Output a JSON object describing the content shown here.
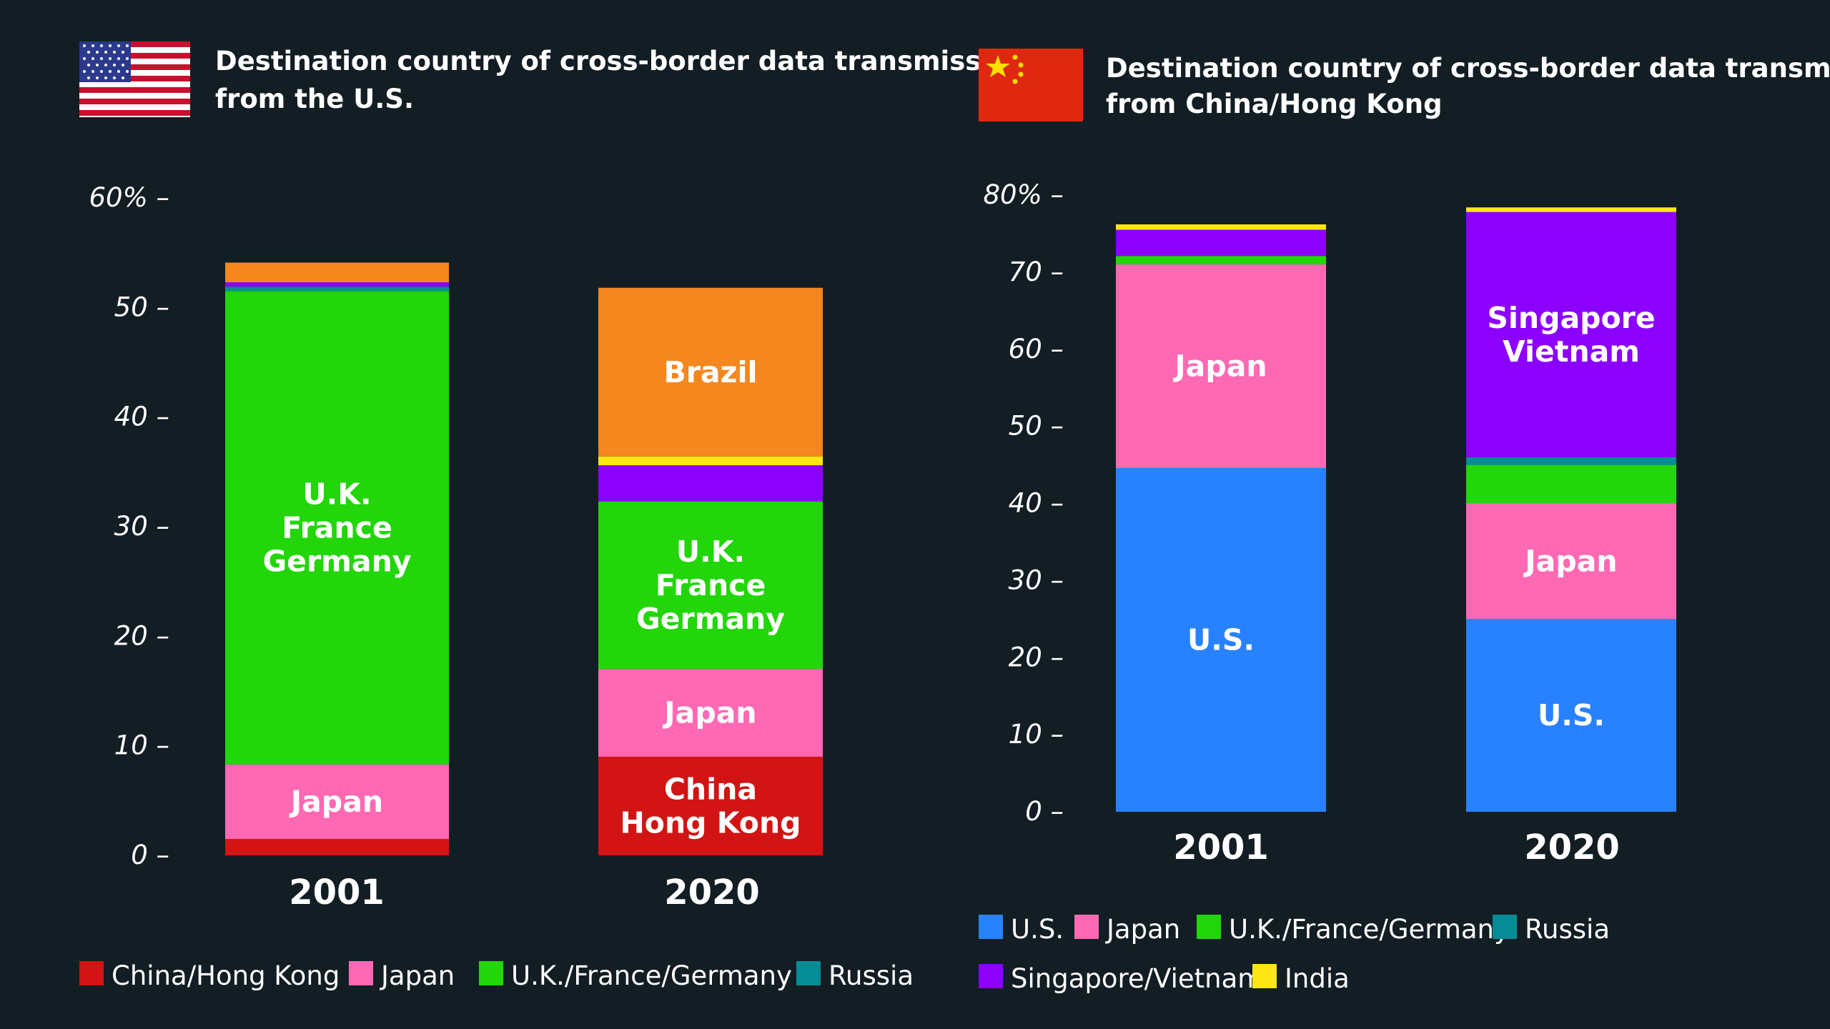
{
  "chart_data": [
    {
      "type": "bar",
      "stacked": true,
      "title_line1": "Destination country of cross-border data transmissio",
      "title_line2": "from the U.S.",
      "flag": "usa-flag-icon",
      "categories": [
        "2001",
        "2020"
      ],
      "yticks": [
        "0 –",
        "10 –",
        "20 –",
        "30 –",
        "40 –",
        "50 –",
        "60% –"
      ],
      "ylim": [
        0,
        60
      ],
      "series": [
        {
          "name": "China/Hong Kong",
          "color": "#d21414",
          "values": [
            1.5,
            9
          ],
          "labels": [
            "",
            "China|Hong Kong"
          ]
        },
        {
          "name": "Japan",
          "color": "#ff69b4",
          "values": [
            6.8,
            8
          ],
          "labels": [
            "Japan",
            "Japan"
          ]
        },
        {
          "name": "U.K./France/Germany",
          "color": "#22d60a",
          "values": [
            43.2,
            15.3
          ],
          "labels": [
            "U.K.|France|Germany",
            "U.K.|France|Germany"
          ]
        },
        {
          "name": "Russia",
          "color": "#078c96",
          "values": [
            0.4,
            0
          ],
          "labels": [
            "",
            ""
          ]
        },
        {
          "name": "Singapore/Vietnam",
          "color": "#8c00ff",
          "values": [
            0.4,
            3.3
          ],
          "labels": [
            "",
            ""
          ]
        },
        {
          "name": "India",
          "color": "#ffe614",
          "values": [
            0,
            0.8
          ],
          "labels": [
            "",
            ""
          ]
        },
        {
          "name": "Brazil",
          "color": "#f5871e",
          "values": [
            1.8,
            15.4
          ],
          "labels": [
            "",
            "Brazil"
          ]
        }
      ],
      "legend_rows": [
        [
          "China/Hong Kong",
          "Japan",
          "U.K./France/Germany",
          "Russia"
        ]
      ]
    },
    {
      "type": "bar",
      "stacked": true,
      "title_line1": "Destination country of cross-border data transmission",
      "title_line2": "from China/Hong Kong",
      "flag": "china-flag-icon",
      "categories": [
        "2001",
        "2020"
      ],
      "yticks": [
        "0 –",
        "10 –",
        "20 –",
        "30 –",
        "40 –",
        "50 –",
        "60 –",
        "70 –",
        "80% –"
      ],
      "ylim": [
        0,
        80
      ],
      "series": [
        {
          "name": "U.S.",
          "color": "#2882ff",
          "values": [
            44.6,
            25
          ],
          "labels": [
            "U.S.",
            "U.S."
          ]
        },
        {
          "name": "Japan",
          "color": "#ff69b4",
          "values": [
            26.4,
            15
          ],
          "labels": [
            "Japan",
            "Japan"
          ]
        },
        {
          "name": "U.K./France/Germany",
          "color": "#22d60a",
          "values": [
            1.1,
            5
          ],
          "labels": [
            "",
            ""
          ]
        },
        {
          "name": "Russia",
          "color": "#078c96",
          "values": [
            0,
            1
          ],
          "labels": [
            "",
            ""
          ]
        },
        {
          "name": "Singapore/Vietnam",
          "color": "#8c00ff",
          "values": [
            3.4,
            31.8
          ],
          "labels": [
            "",
            "Singapore|Vietnam"
          ]
        },
        {
          "name": "India",
          "color": "#ffe614",
          "values": [
            0.7,
            0.6
          ],
          "labels": [
            "",
            ""
          ]
        }
      ],
      "legend_rows": [
        [
          "U.S.",
          "Japan",
          "U.K./France/Germany",
          "Russia"
        ],
        [
          "Singapore/Vietnam",
          "India"
        ]
      ]
    }
  ]
}
